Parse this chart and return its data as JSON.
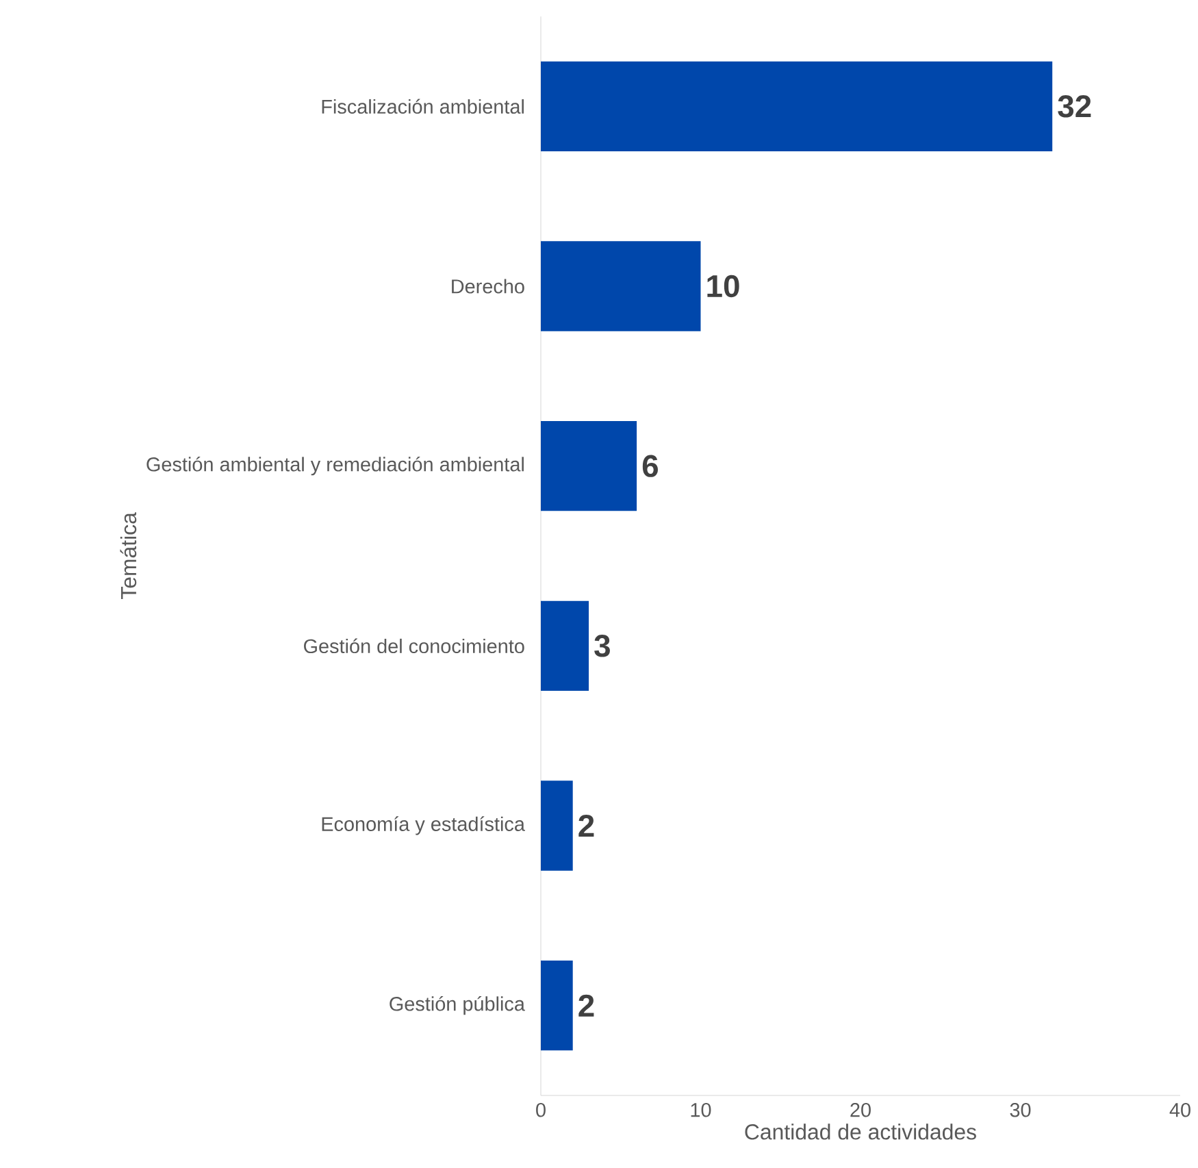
{
  "chart_data": {
    "type": "bar",
    "orientation": "horizontal",
    "xlabel": "Cantidad de actividades",
    "ylabel": "Temática",
    "categories": [
      "Fiscalización ambiental",
      "Derecho",
      "Gestión ambiental y remediación ambiental",
      "Gestión del conocimiento",
      "Economía y estadística",
      "Gestión pública"
    ],
    "values": [
      32,
      10,
      6,
      3,
      2,
      2
    ],
    "color": "#0047ab",
    "xlim": [
      0,
      40
    ],
    "xticks": [
      0,
      10,
      20,
      30,
      40
    ],
    "data_labels": true
  }
}
